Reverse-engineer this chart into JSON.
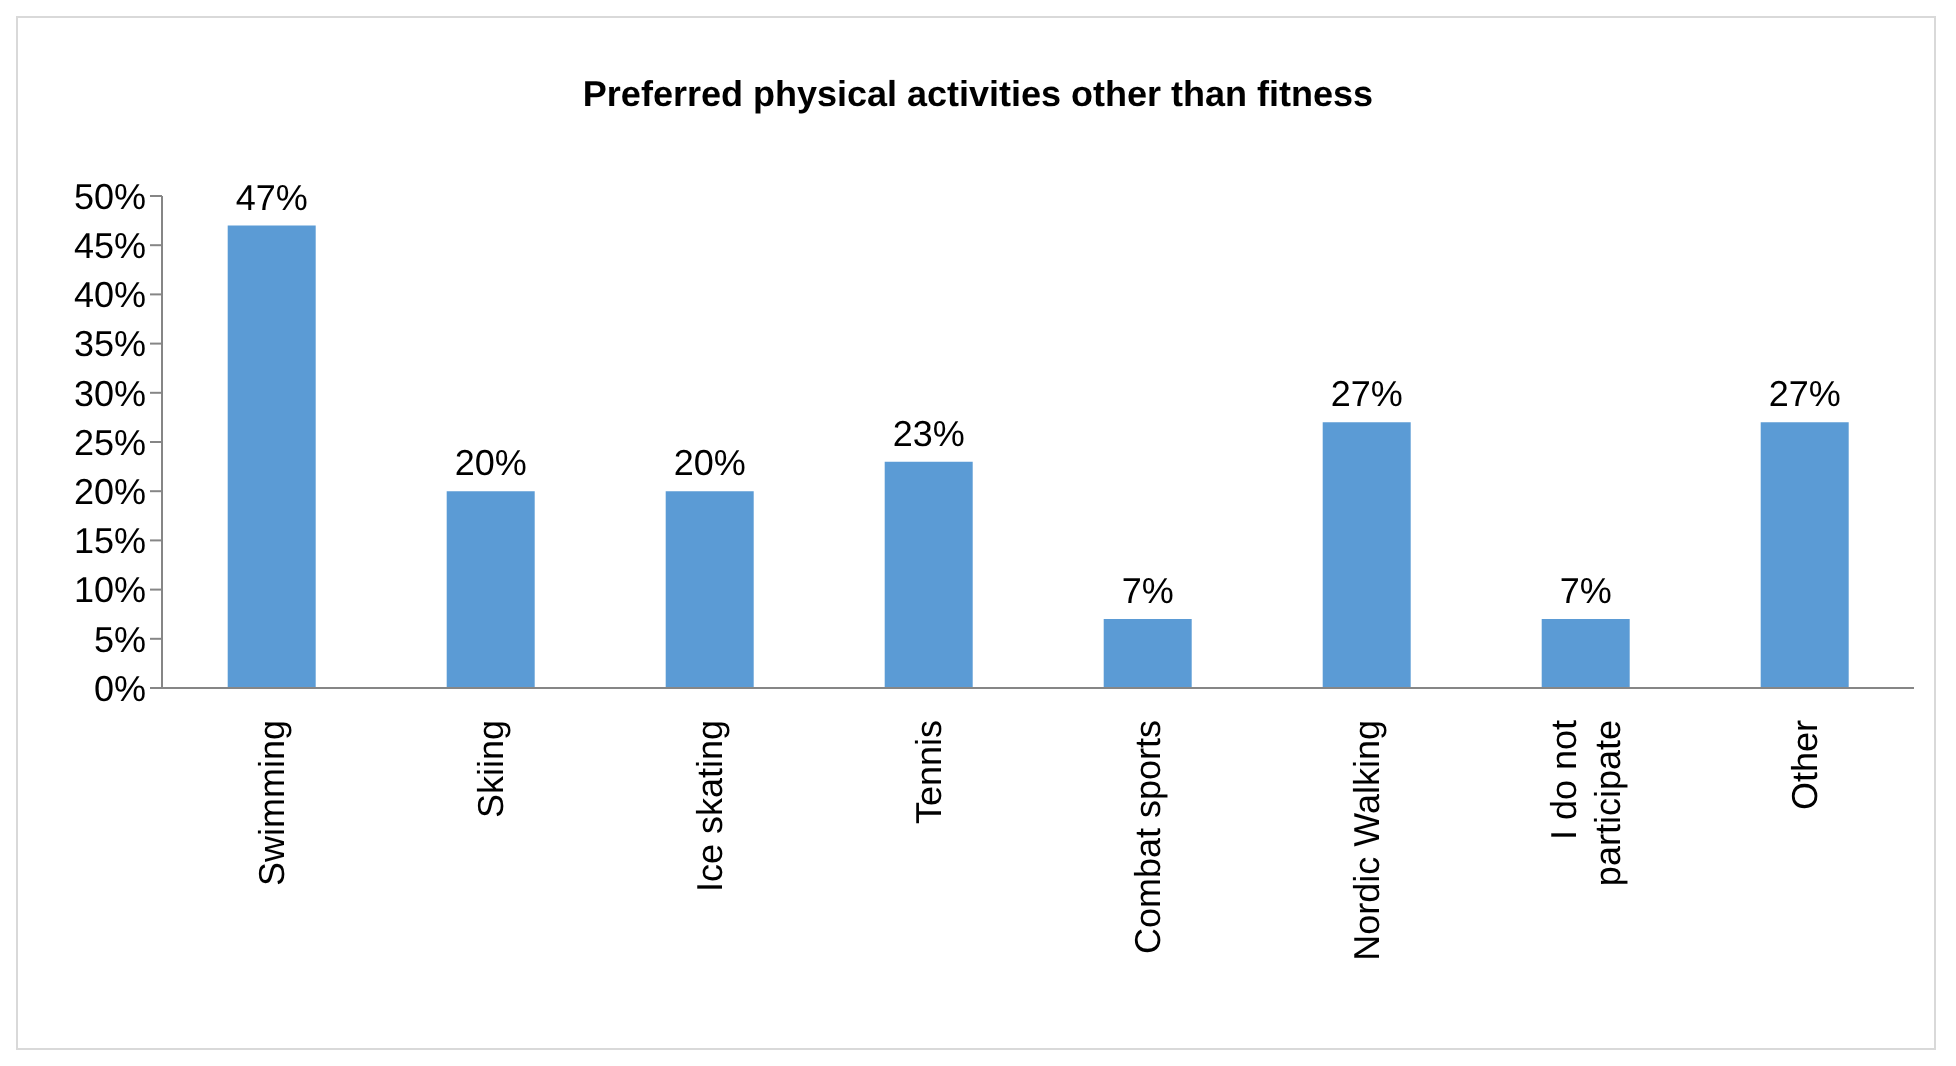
{
  "chart_data": {
    "type": "bar",
    "title": "Preferred physical activities other than fitness",
    "categories": [
      "Swimming",
      "Skiing",
      "Ice skating",
      "Tennis",
      "Combat sports",
      "Nordic Walking",
      "I do not participate",
      "Other"
    ],
    "values": [
      47,
      20,
      20,
      23,
      7,
      27,
      7,
      27
    ],
    "value_labels": [
      "47%",
      "20%",
      "20%",
      "23%",
      "7%",
      "27%",
      "7%",
      "27%"
    ],
    "color": "#5b9bd5",
    "ylim": [
      0,
      50
    ],
    "yticks": [
      {
        "value": 0,
        "label": "0%"
      },
      {
        "value": 5,
        "label": "5%"
      },
      {
        "value": 10,
        "label": "10%"
      },
      {
        "value": 15,
        "label": "15%"
      },
      {
        "value": 20,
        "label": "20%"
      },
      {
        "value": 25,
        "label": "25%"
      },
      {
        "value": 30,
        "label": "30%"
      },
      {
        "value": 35,
        "label": "35%"
      },
      {
        "value": 40,
        "label": "40%"
      },
      {
        "value": 45,
        "label": "45%"
      },
      {
        "value": 50,
        "label": "50%"
      }
    ],
    "grid": false,
    "legend": false
  }
}
